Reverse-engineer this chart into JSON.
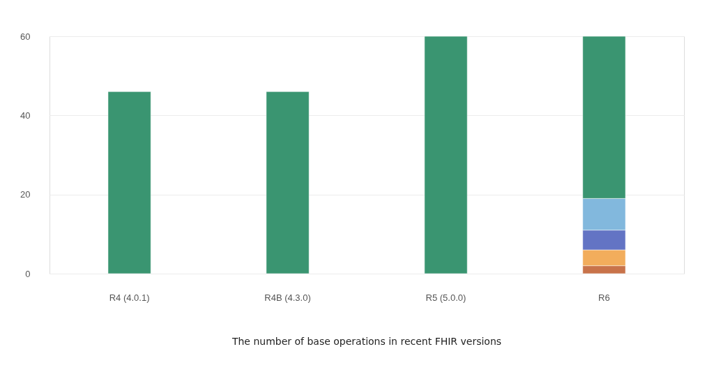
{
  "chart_data": {
    "type": "bar",
    "stacked": true,
    "categories": [
      "R4 (4.0.1)",
      "R4B (4.3.0)",
      "R5 (5.0.0)",
      "R6"
    ],
    "series": [
      {
        "color": "#c8734a",
        "values": [
          null,
          null,
          null,
          2
        ]
      },
      {
        "color": "#f2ad5c",
        "values": [
          null,
          null,
          null,
          4
        ]
      },
      {
        "color": "#6374c4",
        "values": [
          null,
          null,
          null,
          5
        ]
      },
      {
        "color": "#82b8dd",
        "values": [
          null,
          null,
          null,
          8
        ]
      },
      {
        "color": "#3a9571",
        "values": [
          46,
          46,
          60,
          41
        ]
      }
    ],
    "ylim": [
      0,
      60
    ],
    "yticks": [
      0,
      20,
      40,
      60
    ],
    "grid": "y",
    "legend": false,
    "annotations": [
      "The number of base operations in recent FHIR versions"
    ]
  }
}
